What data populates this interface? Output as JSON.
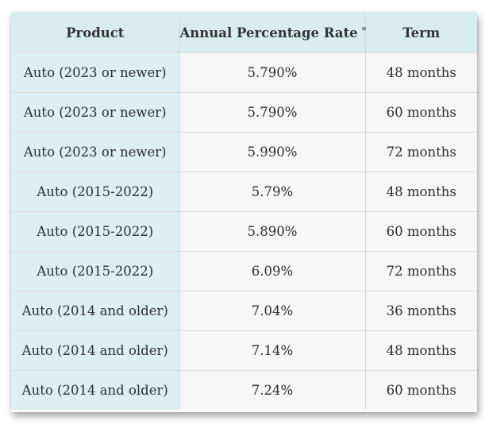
{
  "table": {
    "headers": {
      "product": "Product",
      "apr": "Annual Percentage Rate",
      "apr_marker": "*",
      "term": "Term"
    },
    "rows": [
      {
        "product": "Auto (2023 or newer)",
        "apr": "5.790%",
        "term": "48 months"
      },
      {
        "product": "Auto (2023 or newer)",
        "apr": "5.790%",
        "term": "60 months"
      },
      {
        "product": "Auto (2023 or newer)",
        "apr": "5.990%",
        "term": "72 months"
      },
      {
        "product": "Auto (2015-2022)",
        "apr": "5.79%",
        "term": "48 months"
      },
      {
        "product": "Auto (2015-2022)",
        "apr": "5.890%",
        "term": "60 months"
      },
      {
        "product": "Auto (2015-2022)",
        "apr": "6.09%",
        "term": "72 months"
      },
      {
        "product": "Auto (2014 and older)",
        "apr": "7.04%",
        "term": "36 months"
      },
      {
        "product": "Auto (2014 and older)",
        "apr": "7.14%",
        "term": "48 months"
      },
      {
        "product": "Auto (2014 and older)",
        "apr": "7.24%",
        "term": "60 months"
      }
    ]
  },
  "colors": {
    "header_bg": "#d9edf0",
    "product_col_bg": "#dcf0f3",
    "cell_bg": "#f7f7f7"
  }
}
